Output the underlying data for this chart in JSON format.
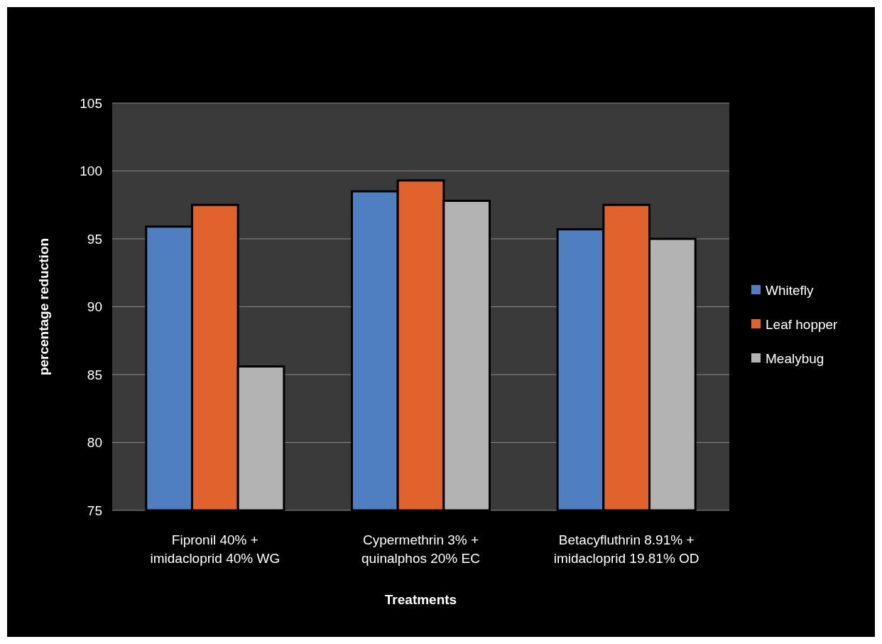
{
  "chart_data": {
    "type": "bar",
    "xlabel": "Treatments",
    "ylabel": "percentage reduction",
    "categories": [
      "Fipronil 40% + imidacloprid 40% WG",
      "Cypermethrin 3% + quinalphos 20% EC",
      "Betacyfluthrin 8.91% + imidacloprid 19.81% OD"
    ],
    "series": [
      {
        "name": "Whitefly",
        "color": "#4f7fc0",
        "values": [
          95.9,
          98.5,
          95.7
        ]
      },
      {
        "name": "Leaf hopper",
        "color": "#e0622c",
        "values": [
          97.5,
          99.3,
          97.5
        ]
      },
      {
        "name": "Mealybug",
        "color": "#b3b3b3",
        "values": [
          85.6,
          97.8,
          95.0
        ]
      }
    ],
    "ylim": [
      75,
      105
    ],
    "yticks": [
      75,
      80,
      85,
      90,
      95,
      100,
      105
    ],
    "grid": "y",
    "legend": "right"
  }
}
